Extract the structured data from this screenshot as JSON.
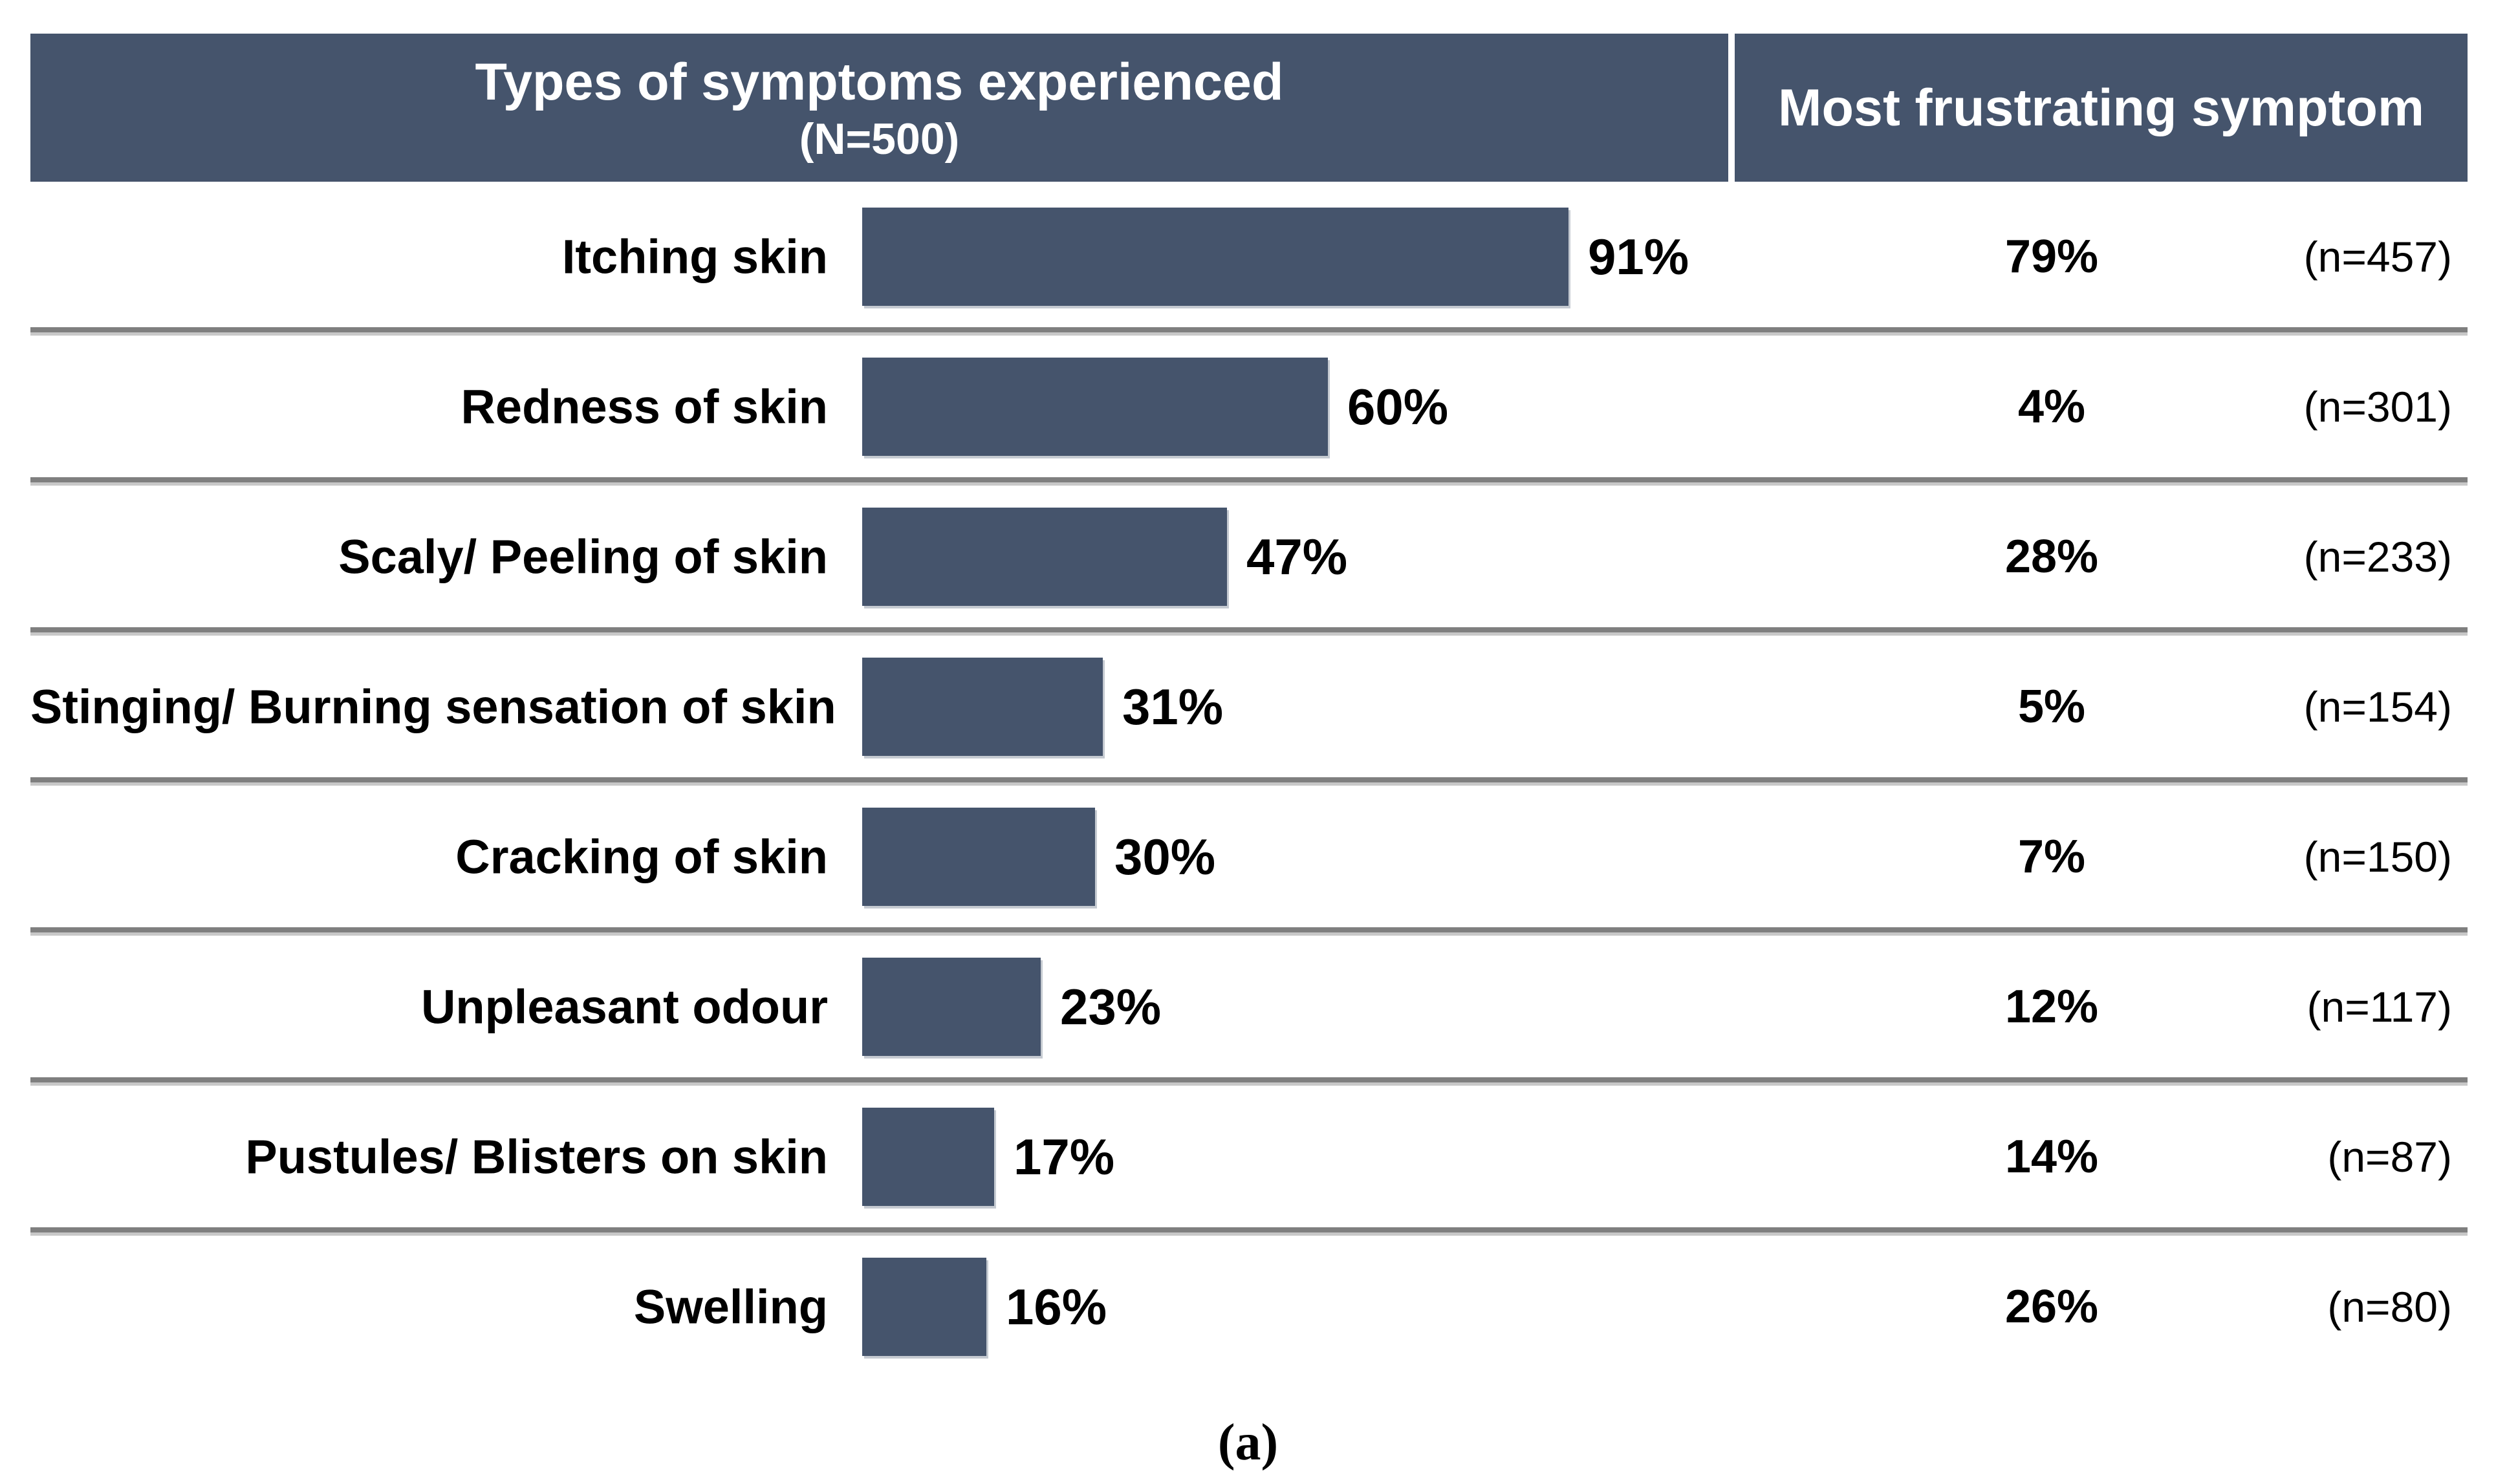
{
  "page": {
    "caption": "(a)"
  },
  "colors": {
    "bar_fill": "#45546C",
    "header_background": "#45546C",
    "header_text": "#ffffff",
    "body_text": "#000000",
    "separator_dark": "#7f7f7f",
    "separator_light": "#c8c8c8",
    "background": "#ffffff"
  },
  "header": {
    "left_title": "Types of symptoms experienced",
    "left_subtitle": "(N=500)",
    "right_title": "Most frustrating symptom"
  },
  "rows": [
    {
      "label": "Itching skin",
      "value": 91,
      "experienced_pct": "91%",
      "frustrating_pct": "79%",
      "n_label": "(n=457)"
    },
    {
      "label": "Redness of skin",
      "value": 60,
      "experienced_pct": "60%",
      "frustrating_pct": "4%",
      "n_label": "(n=301)"
    },
    {
      "label": "Scaly/ Peeling of skin",
      "value": 47,
      "experienced_pct": "47%",
      "frustrating_pct": "28%",
      "n_label": "(n=233)"
    },
    {
      "label": "Stinging/ Burning sensation of skin",
      "value": 31,
      "experienced_pct": "31%",
      "frustrating_pct": "5%",
      "n_label": "(n=154)"
    },
    {
      "label": "Cracking of skin",
      "value": 30,
      "experienced_pct": "30%",
      "frustrating_pct": "7%",
      "n_label": "(n=150)"
    },
    {
      "label": "Unpleasant odour",
      "value": 23,
      "experienced_pct": "23%",
      "frustrating_pct": "12%",
      "n_label": "(n=117)"
    },
    {
      "label": "Pustules/ Blisters on skin",
      "value": 17,
      "experienced_pct": "17%",
      "frustrating_pct": "14%",
      "n_label": "(n=87)"
    },
    {
      "label": "Swelling",
      "value": 16,
      "experienced_pct": "16%",
      "frustrating_pct": "26%",
      "n_label": "(n=80)"
    }
  ],
  "chart_data": {
    "type": "bar",
    "orientation": "horizontal",
    "title": "Types of symptoms experienced",
    "subtitle": "(N=500)",
    "secondary_column_title": "Most frustrating symptom",
    "categories": [
      "Itching skin",
      "Redness of skin",
      "Scaly/ Peeling of skin",
      "Stinging/ Burning sensation of skin",
      "Cracking of skin",
      "Unpleasant odour",
      "Pustules/ Blisters on skin",
      "Swelling"
    ],
    "series": [
      {
        "name": "Types of symptoms experienced (% of N=500)",
        "unit": "%",
        "values": [
          91,
          60,
          47,
          31,
          30,
          23,
          17,
          16
        ]
      },
      {
        "name": "Most frustrating symptom (%)",
        "unit": "%",
        "values": [
          79,
          4,
          28,
          5,
          7,
          12,
          14,
          26
        ]
      },
      {
        "name": "Most frustrating symptom base (n)",
        "unit": "count",
        "values": [
          457,
          301,
          233,
          154,
          150,
          117,
          87,
          80
        ]
      }
    ],
    "xlim": [
      0,
      100
    ],
    "grid": false,
    "legend": false,
    "value_labels": true,
    "caption": "(a)"
  }
}
